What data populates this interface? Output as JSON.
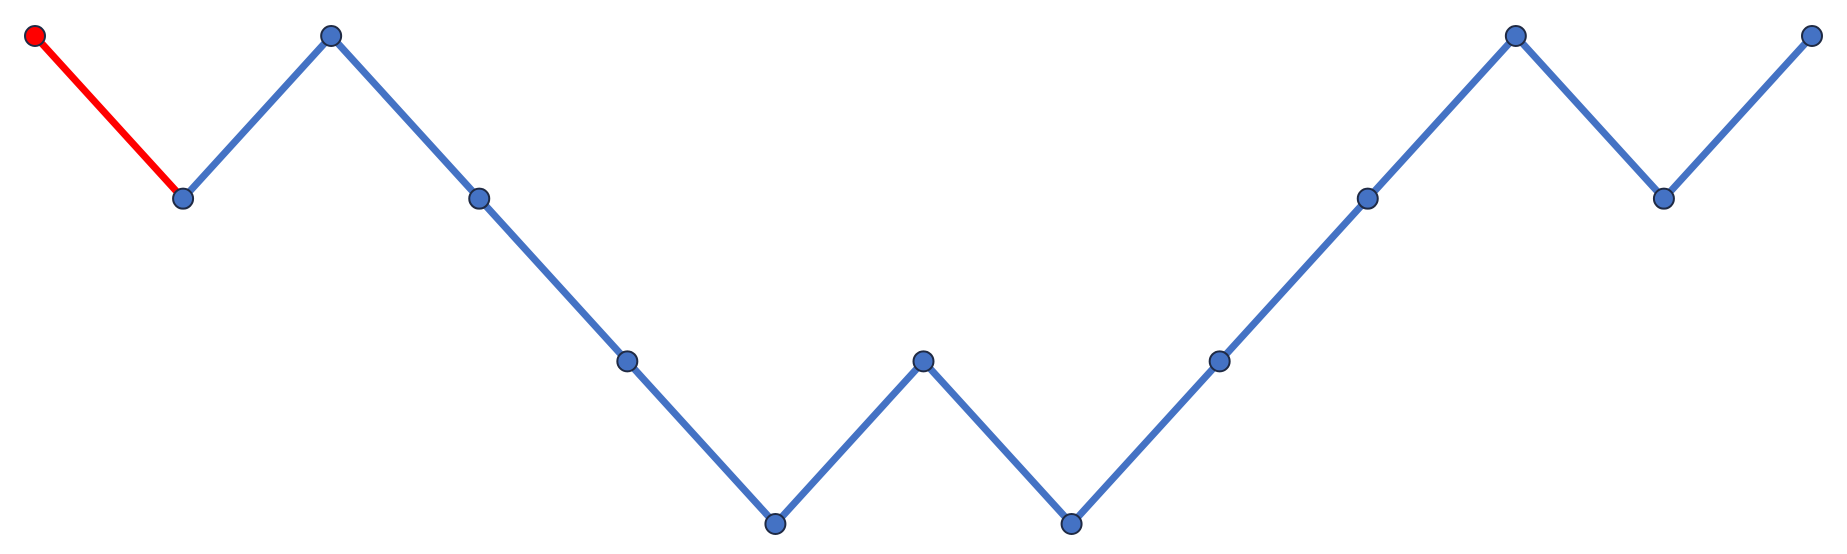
{
  "chart_data": {
    "type": "line",
    "x": [
      0,
      1,
      2,
      3,
      4,
      5,
      6,
      7,
      8,
      9,
      10,
      11,
      12
    ],
    "values": [
      2,
      1,
      2,
      1,
      0,
      -1,
      0,
      -1,
      0,
      1,
      2,
      1,
      2
    ],
    "xlim": [
      0,
      12
    ],
    "ylim": [
      -1,
      2
    ],
    "grid": false,
    "highlight_segment": [
      0,
      1
    ],
    "colors": {
      "line": "#4472C4",
      "highlight": "#FF0000",
      "marker_stroke": "#1F2A44"
    }
  }
}
